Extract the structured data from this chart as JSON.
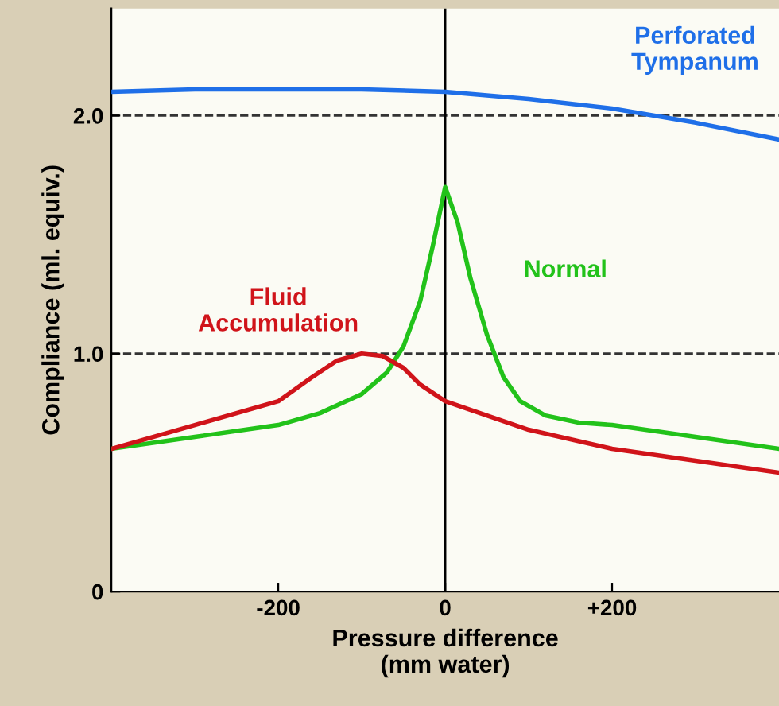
{
  "chart_data": {
    "type": "line",
    "xlabel": "Pressure difference\n(mm water)",
    "ylabel": "Compliance (ml. equiv.)",
    "xlim": [
      -400,
      400
    ],
    "ylim": [
      0,
      2.45
    ],
    "xticks": [
      -200,
      0,
      {
        "value": 200,
        "label": "+200"
      }
    ],
    "yticks": [
      0,
      {
        "value": 1,
        "label": "1.0"
      },
      {
        "value": 2,
        "label": "2.0"
      }
    ],
    "grid": false,
    "legend": false,
    "marker": "none",
    "line_style": "solid",
    "ref_lines": [
      {
        "axis": "y",
        "value": 1,
        "color": "#333333",
        "line_style": "dashed"
      },
      {
        "axis": "y",
        "value": 2,
        "color": "#333333",
        "line_style": "dashed"
      },
      {
        "axis": "x",
        "value": 0,
        "color": "#000000",
        "line_style": "solid"
      }
    ],
    "series": [
      {
        "name": "Perforated\nTympanum",
        "color": "#1f6fe8",
        "x": [
          -400,
          -300,
          -200,
          -100,
          0,
          100,
          200,
          300,
          400
        ],
        "values": [
          2.1,
          2.11,
          2.11,
          2.11,
          2.1,
          2.07,
          2.03,
          1.97,
          1.9
        ]
      },
      {
        "name": "Normal",
        "color": "#22c21a",
        "x": [
          -400,
          -300,
          -200,
          -150,
          -100,
          -70,
          -50,
          -30,
          -15,
          0,
          15,
          30,
          50,
          70,
          90,
          120,
          160,
          200,
          300,
          400
        ],
        "values": [
          0.6,
          0.65,
          0.7,
          0.75,
          0.83,
          0.92,
          1.03,
          1.22,
          1.45,
          1.7,
          1.55,
          1.32,
          1.08,
          0.9,
          0.8,
          0.74,
          0.71,
          0.7,
          0.65,
          0.6
        ]
      },
      {
        "name": "Fluid\nAccumulation",
        "color": "#d0141a",
        "x": [
          -400,
          -300,
          -200,
          -160,
          -130,
          -100,
          -75,
          -50,
          -30,
          0,
          50,
          100,
          200,
          300,
          400
        ],
        "values": [
          0.6,
          0.7,
          0.8,
          0.9,
          0.97,
          1.0,
          0.99,
          0.94,
          0.87,
          0.8,
          0.74,
          0.68,
          0.6,
          0.55,
          0.5
        ]
      }
    ]
  }
}
